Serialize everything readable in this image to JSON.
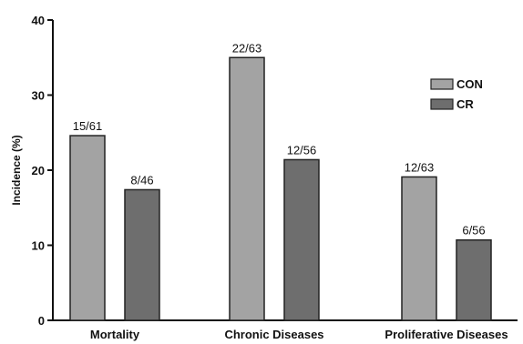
{
  "chart_data": {
    "type": "bar",
    "categories": [
      "Mortality",
      "Chronic Diseases",
      "Proliferative Diseases"
    ],
    "series": [
      {
        "name": "CON",
        "values": [
          24.6,
          35.0,
          19.1
        ],
        "labels": [
          "15/61",
          "22/63",
          "12/63"
        ],
        "color": "#a3a3a3"
      },
      {
        "name": "CR",
        "values": [
          17.4,
          21.4,
          10.7
        ],
        "labels": [
          "8/46",
          "12/56",
          "6/56"
        ],
        "color": "#6e6e6e"
      }
    ],
    "ylabel": "Incidence (%)",
    "ylim": [
      0,
      40
    ],
    "yticks": [
      0,
      10,
      20,
      30,
      40
    ],
    "grid": false,
    "legend_position": "top-right"
  }
}
